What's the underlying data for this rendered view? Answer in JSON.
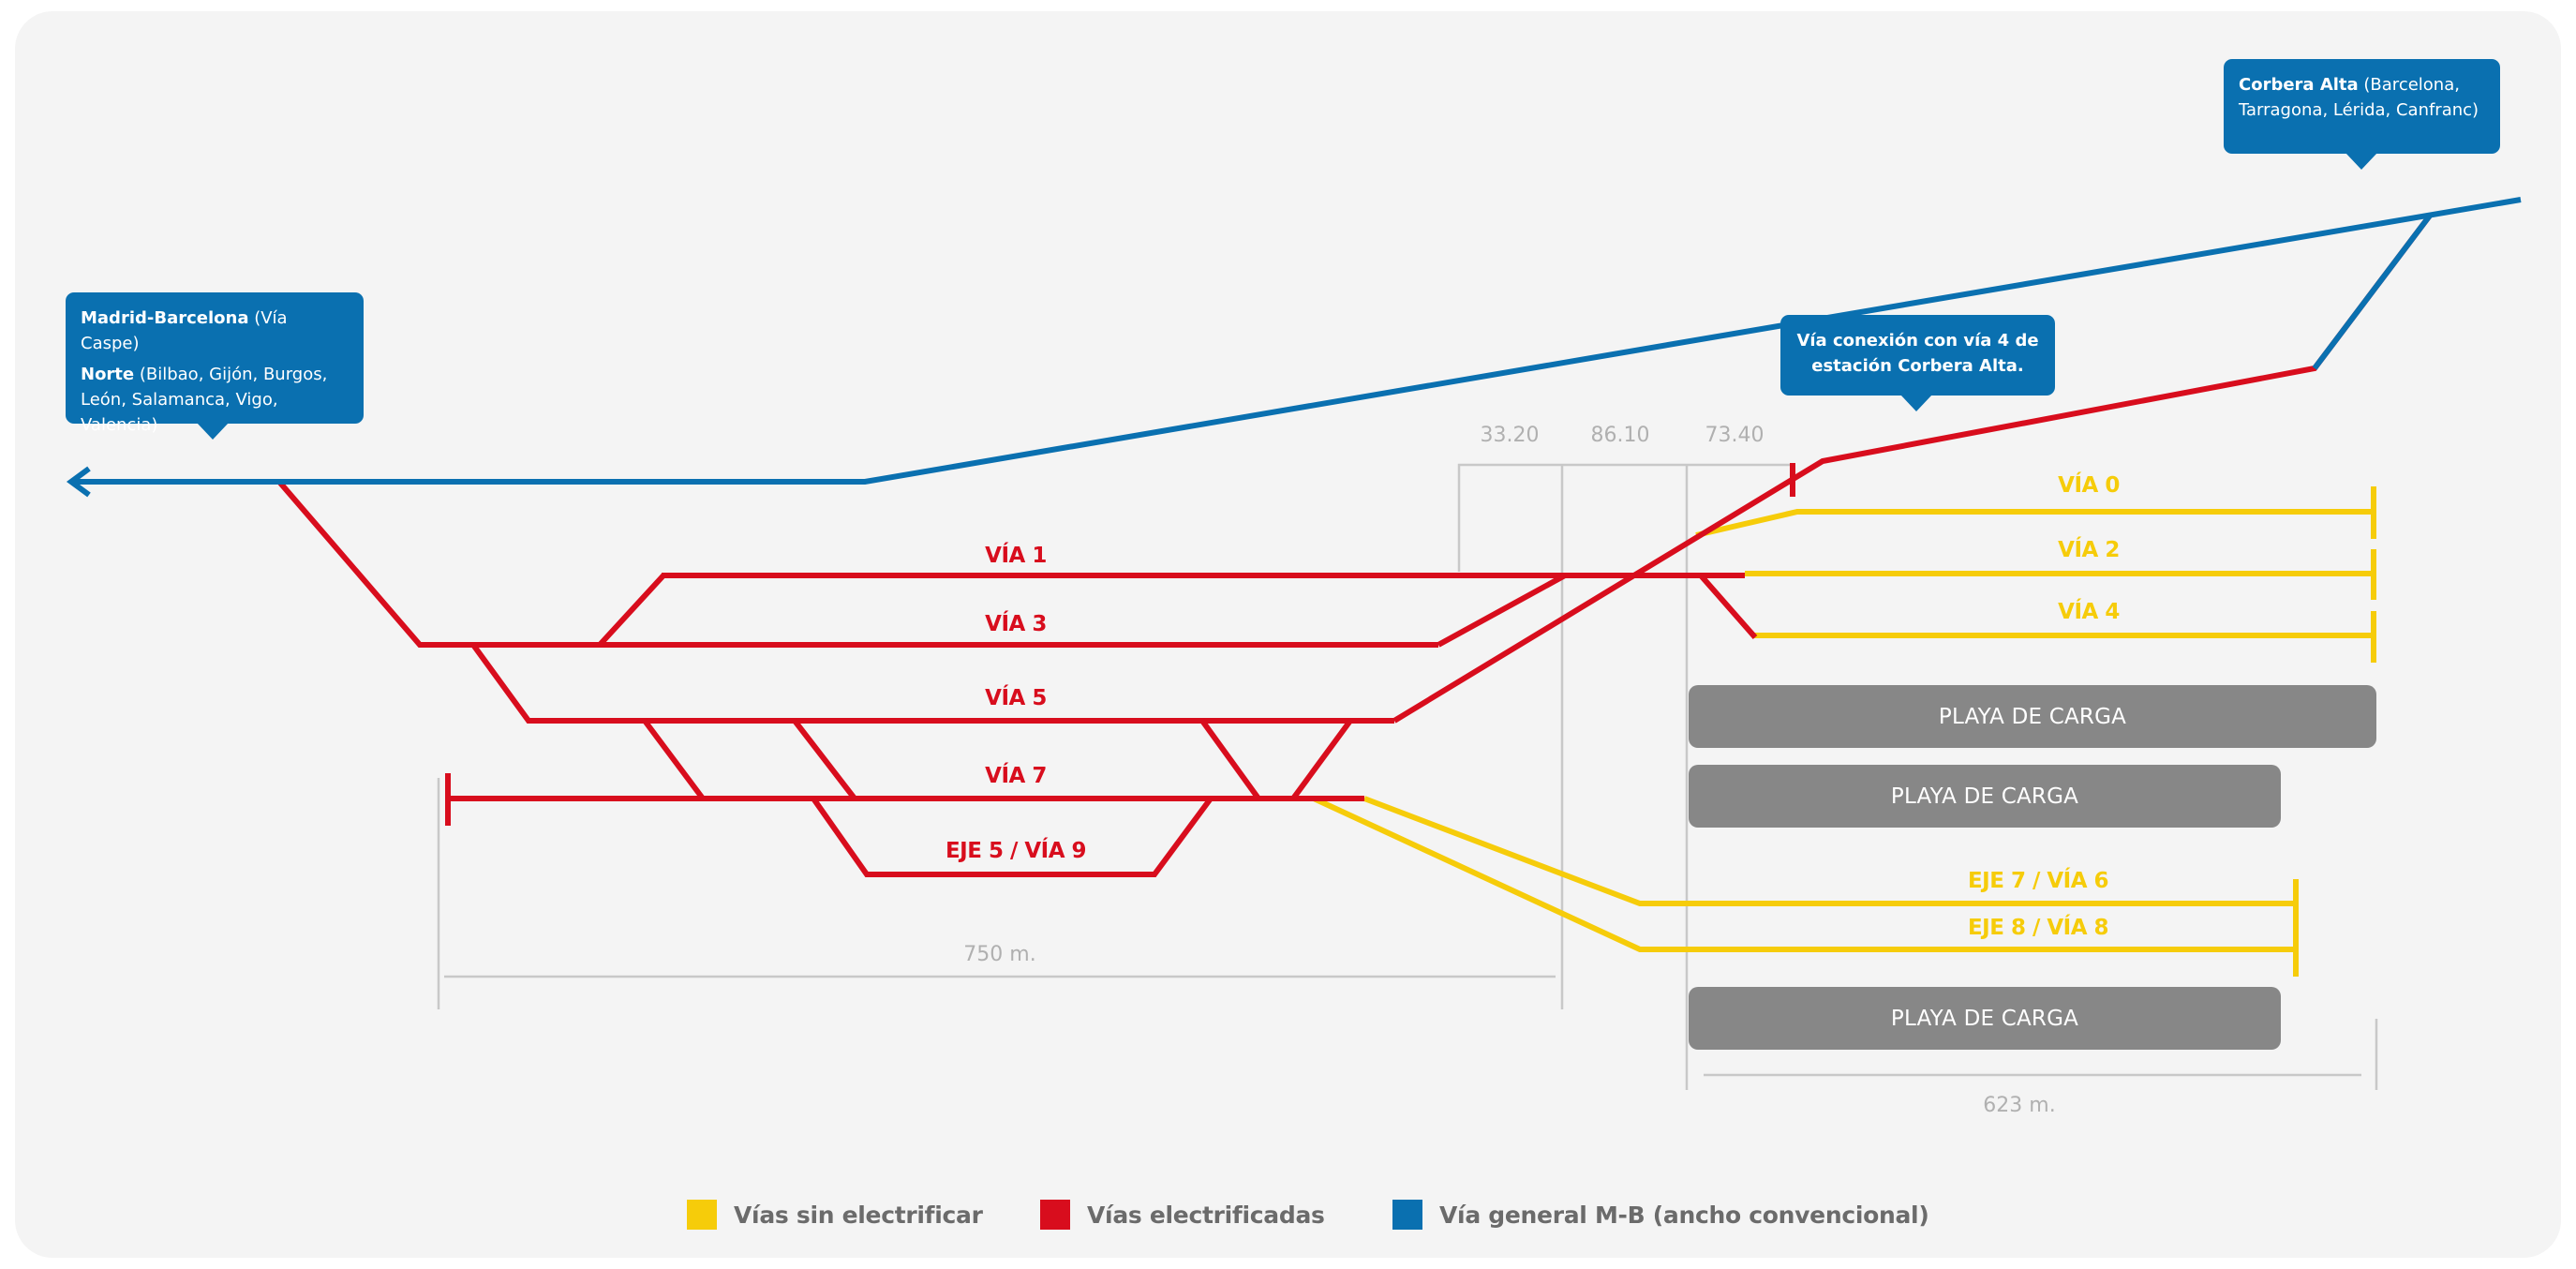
{
  "colors": {
    "yellow": "#f6cc0a",
    "red": "#d80d1d",
    "blue": "#0a70b0",
    "gray": "#878787",
    "dim": "#c8c8c8"
  },
  "callouts": {
    "madrid": {
      "bold1": "Madrid-Barcelona",
      "rest1": " (Vía Caspe)",
      "bold2": "Norte",
      "rest2": " (Bilbao, Gijón, Burgos, León, Salamanca, Vigo, Valencia)"
    },
    "corbera": {
      "bold": "Corbera Alta",
      "rest": " (Barcelona, Tarragona, Lérida, Canfranc)"
    },
    "conexion": {
      "text": "Vía conexión con vía 4 de estación Corbera Alta."
    }
  },
  "tracks": {
    "via0": "VÍA 0",
    "via1": "VÍA 1",
    "via2": "VÍA 2",
    "via3": "VÍA 3",
    "via4": "VÍA 4",
    "via5": "VÍA 5",
    "via7": "VÍA 7",
    "eje5": "EJE 5 / VÍA 9",
    "eje7": "EJE 7 / VÍA 6",
    "eje8": "EJE 8 / VÍA 8"
  },
  "playas": [
    "PLAYA DE CARGA",
    "PLAYA DE CARGA",
    "PLAYA DE CARGA"
  ],
  "dimensions": {
    "d1": "33.20",
    "d2": "86.10",
    "d3": "73.40",
    "left_length": "750 m.",
    "right_length": "623 m."
  },
  "legend": [
    {
      "label": "Vías sin electrificar",
      "color": "#f6cc0a"
    },
    {
      "label": "Vías electrificadas",
      "color": "#d80d1d"
    },
    {
      "label": "Vía general M-B (ancho convencional)",
      "color": "#0a70b0"
    }
  ]
}
